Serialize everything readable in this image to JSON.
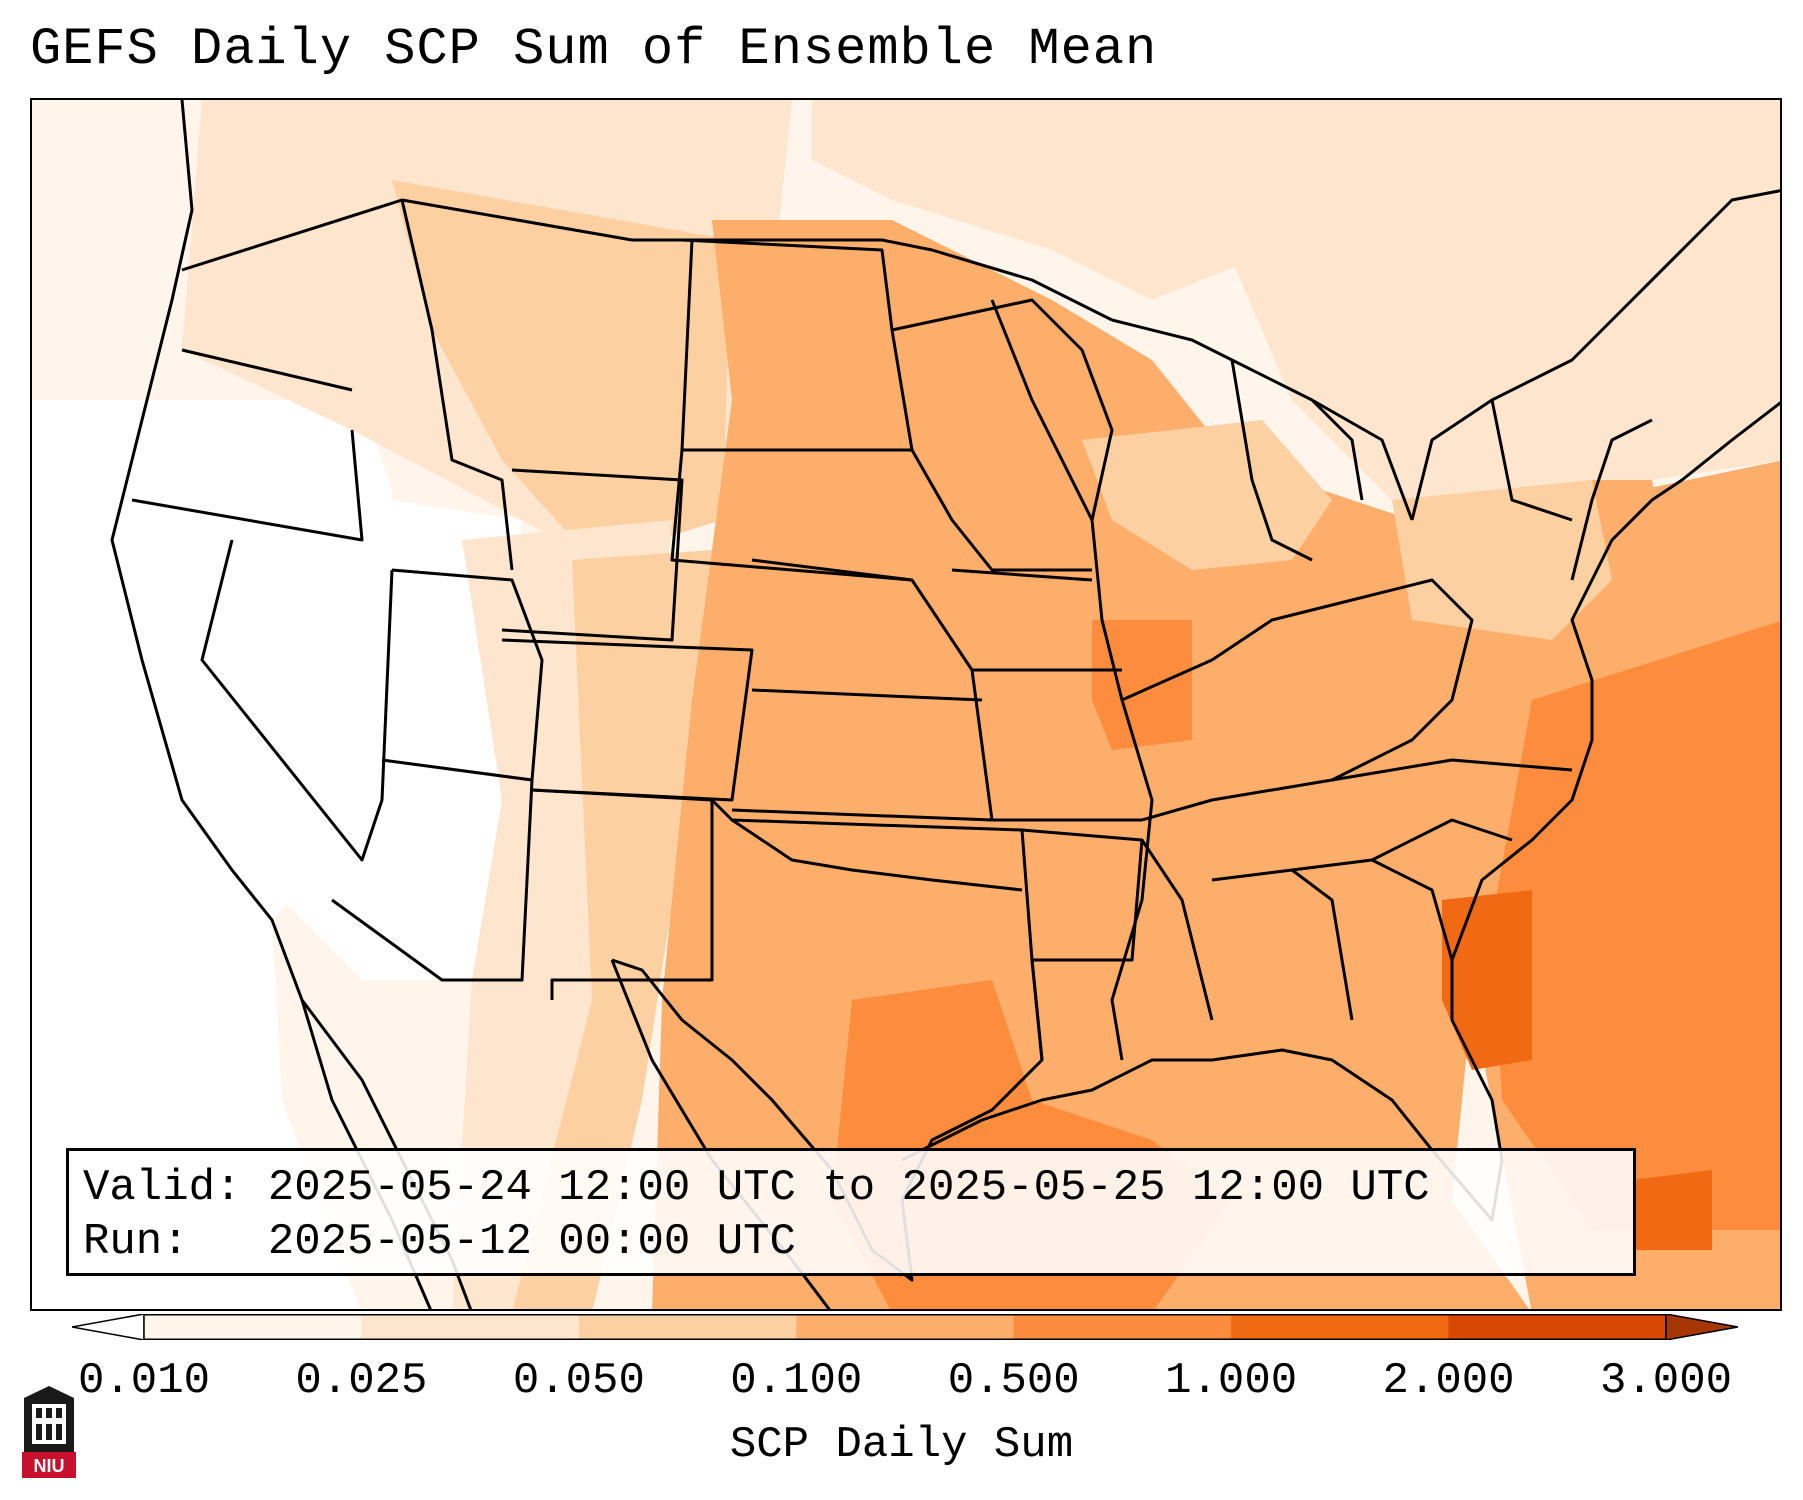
{
  "title": "GEFS Daily SCP Sum of Ensemble Mean",
  "info": {
    "valid_label": "Valid:",
    "valid_value": "2025-05-24 12:00 UTC to 2025-05-25 12:00 UTC",
    "run_label": "Run:",
    "run_value": "2025-05-12 00:00 UTC"
  },
  "colorbar": {
    "label": "SCP Daily Sum",
    "ticks": [
      "0.010",
      "0.025",
      "0.050",
      "0.100",
      "0.500",
      "1.000",
      "2.000",
      "3.000"
    ],
    "colors": [
      "#fff5eb",
      "#fee6ce",
      "#fdd0a2",
      "#fdae6b",
      "#fd8d3c",
      "#f16913",
      "#d94801"
    ],
    "under_color": "#ffffff",
    "over_color": "#a63603",
    "extend": "both"
  },
  "logo": {
    "text": "NIU",
    "icon": "niu-logo-icon"
  },
  "map": {
    "region": "Contiguous United States",
    "field": "GEFS ensemble mean daily SCP sum",
    "colors": {
      "none": "#ffffff",
      "trace": "#fff5eb",
      "light": "#fee6ce",
      "moderate": "#fdd0a2",
      "elevated": "#fdae6b",
      "high": "#fd8d3c",
      "very_high": "#f16913"
    }
  }
}
